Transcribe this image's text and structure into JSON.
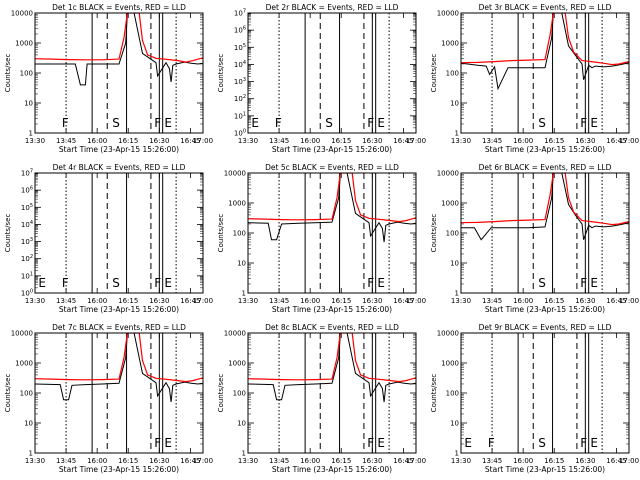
{
  "figure": {
    "xtick_labels": [
      "13:30",
      "13:45",
      "16:00",
      "16:15",
      "16:30",
      "16:45",
      "17:00"
    ],
    "xlabel": "Start Time (23-Apr-15 15:26:00)",
    "ylabel": "Counts/sec",
    "event_letters": [
      "E",
      "F",
      "S",
      "F",
      "E"
    ],
    "colors": {
      "events": "#000000",
      "lld": "#ff0000",
      "axes": "#000000"
    }
  },
  "chart_data": [
    {
      "title": "Det 1c BLACK = Events, RED = LLD",
      "type": "line",
      "yscale": "log",
      "ylim": [
        1,
        10000
      ],
      "ytick_labels": [
        "1",
        "10",
        "100",
        "1000",
        "10000"
      ],
      "show_letters": [
        false,
        true,
        true,
        true,
        true
      ],
      "series": [
        {
          "name": "Events",
          "x": [
            0,
            24,
            27,
            30,
            31,
            33,
            40,
            50,
            54,
            55,
            57,
            59,
            62,
            64,
            72,
            73,
            78,
            80,
            81,
            82,
            84,
            89,
            93,
            97,
            100
          ],
          "y": [
            200,
            200,
            40,
            40,
            200,
            200,
            200,
            200,
            1000,
            10000,
            10000,
            10000,
            1500,
            450,
            220,
            80,
            220,
            140,
            50,
            180,
            200,
            230,
            210,
            200,
            210
          ]
        },
        {
          "name": "LLD",
          "x": [
            0,
            10,
            20,
            30,
            40,
            50,
            53,
            55,
            58,
            62,
            64,
            67,
            72,
            80,
            85,
            90,
            94,
            100
          ],
          "y": [
            300,
            290,
            280,
            275,
            275,
            290,
            1500,
            10000,
            10000,
            10000,
            1200,
            400,
            310,
            280,
            260,
            230,
            260,
            320
          ]
        }
      ]
    },
    {
      "title": "Det 2r BLACK = Events, RED = LLD",
      "type": "line",
      "yscale": "log",
      "ylim": [
        1,
        10000000
      ],
      "ytick_labels": [
        "10^0",
        "10^1",
        "10^2",
        "10^3",
        "10^4",
        "10^5",
        "10^6",
        "10^7"
      ],
      "show_letters": [
        true,
        true,
        true,
        true,
        true
      ],
      "series": []
    },
    {
      "title": "Det 3r BLACK = Events, RED = LLD",
      "type": "line",
      "yscale": "log",
      "ylim": [
        1,
        10000
      ],
      "ytick_labels": [
        "1",
        "10",
        "100",
        "1000",
        "10000"
      ],
      "show_letters": [
        false,
        false,
        true,
        true,
        true
      ],
      "series": [
        {
          "name": "Events",
          "x": [
            0,
            4,
            10,
            15,
            17,
            20,
            22,
            28,
            40,
            50,
            54,
            55,
            57,
            60,
            64,
            68,
            72,
            73,
            76,
            78,
            80,
            85,
            90,
            95,
            100
          ],
          "y": [
            210,
            200,
            180,
            170,
            90,
            160,
            30,
            150,
            150,
            150,
            1500,
            10000,
            10000,
            10000,
            800,
            400,
            200,
            60,
            180,
            150,
            170,
            160,
            170,
            190,
            220
          ]
        },
        {
          "name": "LLD",
          "x": [
            0,
            10,
            20,
            30,
            40,
            50,
            53,
            55,
            58,
            62,
            64,
            67,
            72,
            80,
            85,
            90,
            94,
            100
          ],
          "y": [
            220,
            225,
            240,
            260,
            270,
            280,
            1800,
            10000,
            10000,
            10000,
            1500,
            500,
            260,
            230,
            210,
            190,
            200,
            240
          ]
        }
      ]
    },
    {
      "title": "Det 4r BLACK = Events, RED = LLD",
      "type": "line",
      "yscale": "log",
      "ylim": [
        1,
        10000000
      ],
      "ytick_labels": [
        "10^0",
        "10^1",
        "10^2",
        "10^3",
        "10^4",
        "10^5",
        "10^6",
        "10^7"
      ],
      "show_letters": [
        true,
        true,
        true,
        true,
        true
      ],
      "series": []
    },
    {
      "title": "Det 5c BLACK = Events, RED = LLD",
      "type": "line",
      "yscale": "log",
      "ylim": [
        1,
        10000
      ],
      "ytick_labels": [
        "1",
        "10",
        "100",
        "1000",
        "10000"
      ],
      "show_letters": [
        false,
        false,
        false,
        true,
        true
      ],
      "series": [
        {
          "name": "Events",
          "x": [
            0,
            12,
            14,
            17,
            20,
            30,
            40,
            50,
            54,
            55,
            57,
            59,
            62,
            64,
            72,
            73,
            78,
            80,
            81,
            82,
            84,
            89,
            93,
            97,
            100
          ],
          "y": [
            220,
            210,
            60,
            60,
            200,
            210,
            220,
            230,
            1500,
            10000,
            10000,
            10000,
            1500,
            450,
            220,
            80,
            220,
            140,
            50,
            180,
            200,
            230,
            210,
            200,
            210
          ]
        },
        {
          "name": "LLD",
          "x": [
            0,
            10,
            20,
            30,
            40,
            50,
            53,
            55,
            58,
            62,
            64,
            67,
            72,
            80,
            85,
            90,
            94,
            100
          ],
          "y": [
            300,
            290,
            280,
            275,
            280,
            290,
            1500,
            10000,
            10000,
            10000,
            1200,
            400,
            310,
            280,
            260,
            240,
            260,
            320
          ]
        }
      ]
    },
    {
      "title": "Det 6r BLACK = Events, RED = LLD",
      "type": "line",
      "yscale": "log",
      "ylim": [
        1,
        10000
      ],
      "ytick_labels": [
        "1",
        "10",
        "100",
        "1000",
        "10000"
      ],
      "show_letters": [
        false,
        false,
        true,
        true,
        true
      ],
      "series": [
        {
          "name": "Events",
          "x": [
            0,
            8,
            12,
            18,
            20,
            30,
            40,
            50,
            54,
            55,
            57,
            60,
            64,
            68,
            72,
            73,
            76,
            78,
            80,
            85,
            90,
            95,
            100
          ],
          "y": [
            150,
            150,
            60,
            150,
            150,
            150,
            150,
            160,
            1500,
            10000,
            10000,
            10000,
            900,
            400,
            200,
            60,
            180,
            150,
            170,
            160,
            170,
            190,
            220
          ]
        },
        {
          "name": "LLD",
          "x": [
            0,
            10,
            20,
            30,
            40,
            50,
            53,
            55,
            58,
            62,
            64,
            67,
            72,
            80,
            85,
            90,
            94,
            100
          ],
          "y": [
            220,
            225,
            240,
            260,
            270,
            280,
            1800,
            10000,
            10000,
            10000,
            1500,
            500,
            260,
            230,
            210,
            190,
            200,
            240
          ]
        }
      ]
    },
    {
      "title": "Det 7c BLACK = Events, RED = LLD",
      "type": "line",
      "yscale": "log",
      "ylim": [
        1,
        10000
      ],
      "ytick_labels": [
        "1",
        "10",
        "100",
        "1000",
        "10000"
      ],
      "show_letters": [
        false,
        false,
        false,
        true,
        true
      ],
      "series": [
        {
          "name": "Events",
          "x": [
            0,
            15,
            17,
            20,
            22,
            30,
            40,
            50,
            54,
            55,
            57,
            59,
            62,
            64,
            72,
            73,
            78,
            80,
            81,
            82,
            84,
            89,
            93,
            97,
            100
          ],
          "y": [
            200,
            190,
            60,
            60,
            180,
            190,
            200,
            210,
            1500,
            10000,
            10000,
            10000,
            1500,
            450,
            220,
            80,
            220,
            140,
            50,
            180,
            200,
            230,
            210,
            200,
            210
          ]
        },
        {
          "name": "LLD",
          "x": [
            0,
            10,
            20,
            30,
            40,
            50,
            53,
            55,
            58,
            62,
            64,
            67,
            72,
            80,
            85,
            90,
            94,
            100
          ],
          "y": [
            300,
            290,
            280,
            275,
            280,
            290,
            1500,
            10000,
            10000,
            10000,
            1200,
            400,
            310,
            280,
            260,
            240,
            260,
            320
          ]
        }
      ]
    },
    {
      "title": "Det 8c BLACK = Events, RED = LLD",
      "type": "line",
      "yscale": "log",
      "ylim": [
        1,
        10000
      ],
      "ytick_labels": [
        "1",
        "10",
        "100",
        "1000",
        "10000"
      ],
      "show_letters": [
        false,
        false,
        false,
        true,
        true
      ],
      "series": [
        {
          "name": "Events",
          "x": [
            0,
            15,
            17,
            20,
            22,
            30,
            40,
            50,
            54,
            55,
            57,
            59,
            62,
            64,
            72,
            73,
            78,
            80,
            81,
            82,
            84,
            89,
            93,
            97,
            100
          ],
          "y": [
            200,
            190,
            60,
            60,
            180,
            190,
            200,
            210,
            1500,
            10000,
            10000,
            10000,
            1500,
            450,
            220,
            80,
            220,
            140,
            50,
            180,
            200,
            230,
            210,
            200,
            210
          ]
        },
        {
          "name": "LLD",
          "x": [
            0,
            10,
            20,
            30,
            40,
            50,
            53,
            55,
            58,
            62,
            64,
            67,
            72,
            80,
            85,
            90,
            94,
            100
          ],
          "y": [
            300,
            290,
            280,
            275,
            280,
            290,
            1500,
            10000,
            10000,
            10000,
            1200,
            400,
            310,
            280,
            260,
            240,
            260,
            320
          ]
        }
      ]
    },
    {
      "title": "Det 9r BLACK = Events, RED = LLD",
      "type": "line",
      "yscale": "log",
      "ylim": [
        1,
        10000
      ],
      "ytick_labels": [
        "1",
        "10",
        "100",
        "1000",
        "10000"
      ],
      "show_letters": [
        true,
        true,
        true,
        true,
        true
      ],
      "series": []
    }
  ]
}
